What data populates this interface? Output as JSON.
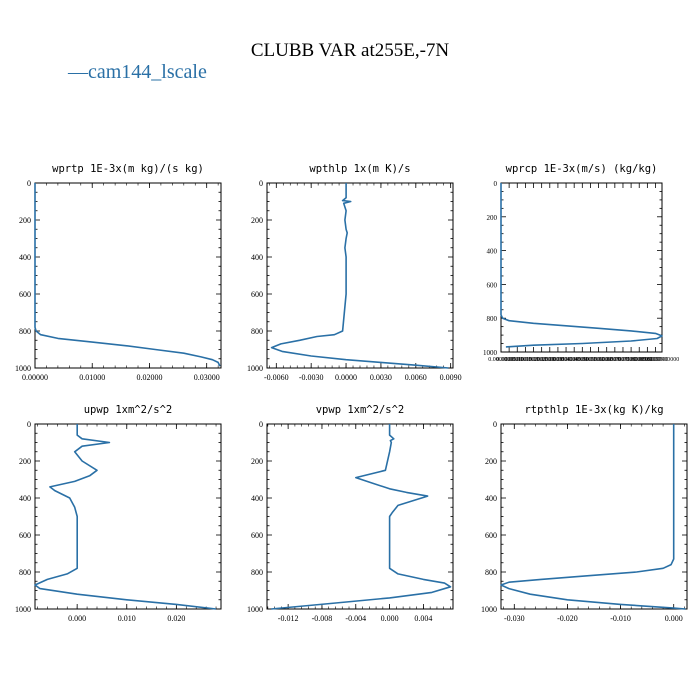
{
  "page": {
    "title": "CLUBB VAR at255E,-7N",
    "legend_label": "cam144_lscale",
    "legend_glyph": "—",
    "line_color": "#2a70a6"
  },
  "chart_data": [
    {
      "type": "line",
      "title": "wprtp  1E-3x(m kg)/(s kg)",
      "xlim": [
        0.0,
        0.0325
      ],
      "ylim": [
        0,
        1000
      ],
      "y_reversed": true,
      "xticks": [
        0.0,
        0.01,
        0.02,
        0.03
      ],
      "xtick_labels": [
        "0.00000",
        "0.01000",
        "0.02000",
        "0.03000"
      ],
      "yticks": [
        0,
        200,
        400,
        600,
        800,
        1000
      ],
      "ytick_labels": [
        "0",
        "200",
        "400",
        "600",
        "800",
        "1000"
      ],
      "series": [
        {
          "x": [
            0,
            0,
            0,
            0,
            0,
            0,
            0,
            0,
            0,
            0.0002,
            0.001,
            0.004,
            0.01,
            0.016,
            0.021,
            0.026,
            0.029,
            0.031,
            0.032,
            0.0323
          ],
          "y": [
            0,
            100,
            200,
            300,
            400,
            500,
            600,
            700,
            780,
            800,
            820,
            840,
            860,
            880,
            900,
            920,
            940,
            955,
            970,
            990
          ]
        }
      ]
    },
    {
      "type": "line",
      "title": "wpthlp  1x(m K)/s",
      "xlim": [
        -0.0068,
        0.0092
      ],
      "ylim": [
        0,
        1000
      ],
      "y_reversed": true,
      "xticks": [
        -0.006,
        -0.003,
        0.0,
        0.003,
        0.006,
        0.009
      ],
      "xtick_labels": [
        "-0.0060",
        "-0.0030",
        "0.0000",
        "0.0030",
        "0.0060",
        "0.0090"
      ],
      "yticks": [
        0,
        200,
        400,
        600,
        800,
        1000
      ],
      "ytick_labels": [
        "0",
        "200",
        "400",
        "600",
        "800",
        "1000"
      ],
      "series": [
        {
          "x": [
            0,
            0,
            -0.0003,
            0.0004,
            -0.0002,
            0,
            -0.0001,
            0,
            0.0001,
            0,
            -0.0001,
            0,
            0,
            0,
            0,
            -0.0003,
            -0.001,
            -0.0025,
            -0.004,
            -0.0056,
            -0.0064,
            -0.0055,
            -0.003,
            0,
            0.003,
            0.006,
            0.0088
          ],
          "y": [
            0,
            80,
            95,
            100,
            110,
            150,
            200,
            250,
            270,
            300,
            350,
            400,
            450,
            500,
            600,
            800,
            820,
            830,
            850,
            870,
            890,
            910,
            935,
            955,
            970,
            985,
            1000
          ]
        }
      ]
    },
    {
      "type": "line",
      "title": "wprcp  1E-3x(m/s) (kg/kg)",
      "xlim": [
        0.0,
        0.00099
      ],
      "ylim": [
        0,
        1000
      ],
      "y_reversed": true,
      "xticks": [
        0.0,
        5e-05,
        0.0001,
        0.00015,
        0.0002,
        0.00025,
        0.0003,
        0.00035,
        0.0004,
        0.00045,
        0.0005,
        0.00055,
        0.0006,
        0.00065,
        0.0007,
        0.00075,
        0.0008,
        0.00085,
        0.0009,
        0.00095,
        0.00099
      ],
      "xtick_labels": [
        "0.0000000",
        "0.0000500",
        "0.0001000",
        "0.0001500",
        "0.0002000",
        "0.0002500",
        "0.0003000",
        "0.0003500",
        "0.0004000",
        "0.0004500",
        "0.0005000",
        "0.0005500",
        "0.0006000",
        "0.0006500",
        "0.0007000",
        "0.0007500",
        "0.0008000",
        "0.0008500",
        "0.0009000",
        "0.0009500",
        "0.0009900000"
      ],
      "yticks": [
        0,
        200,
        400,
        600,
        800,
        1000
      ],
      "ytick_labels": [
        "0",
        "200",
        "400",
        "600",
        "800",
        "1000"
      ],
      "series": [
        {
          "x": [
            0,
            0,
            0,
            1e-05,
            5e-05,
            0.0002,
            0.0004,
            0.0006,
            0.0008,
            0.00095,
            0.00099,
            0.00096,
            0.0008,
            0.0005,
            0.0002,
            3e-05
          ],
          "y": [
            0,
            400,
            780,
            800,
            815,
            830,
            845,
            860,
            875,
            890,
            905,
            920,
            935,
            950,
            960,
            970
          ]
        }
      ]
    },
    {
      "type": "line",
      "title": "upwp  1xm^2/s^2",
      "xlim": [
        -0.0085,
        0.029
      ],
      "ylim": [
        0,
        1000
      ],
      "y_reversed": true,
      "xticks": [
        0.0,
        0.01,
        0.02
      ],
      "xtick_labels": [
        "0.000",
        "0.010",
        "0.020"
      ],
      "yticks": [
        0,
        200,
        400,
        600,
        800,
        1000
      ],
      "ytick_labels": [
        "0",
        "200",
        "400",
        "600",
        "800",
        "1000"
      ],
      "series": [
        {
          "x": [
            0,
            0,
            0.001,
            0.0065,
            0.001,
            -0.0005,
            0.001,
            0.004,
            0.0025,
            -0.0005,
            -0.0055,
            -0.0045,
            -0.0015,
            -0.0005,
            0,
            0,
            0,
            0,
            -0.002,
            -0.006,
            -0.0085,
            -0.0075,
            0,
            0.01,
            0.02,
            0.028
          ],
          "y": [
            0,
            60,
            80,
            100,
            120,
            150,
            200,
            250,
            280,
            310,
            340,
            360,
            400,
            450,
            500,
            600,
            700,
            780,
            810,
            840,
            870,
            890,
            920,
            950,
            975,
            1000
          ]
        }
      ]
    },
    {
      "type": "line",
      "title": "vpwp  1xm^2/s^2",
      "xlim": [
        -0.0145,
        0.0075
      ],
      "ylim": [
        0,
        1000
      ],
      "y_reversed": true,
      "xticks": [
        -0.012,
        -0.008,
        -0.004,
        0.0,
        0.004
      ],
      "xtick_labels": [
        "-0.012",
        "-0.008",
        "-0.004",
        "0.000",
        "0.004"
      ],
      "yticks": [
        0,
        200,
        400,
        600,
        800,
        1000
      ],
      "ytick_labels": [
        "0",
        "200",
        "400",
        "600",
        "800",
        "1000"
      ],
      "series": [
        {
          "x": [
            0,
            0,
            0.0005,
            0.0001,
            0.0002,
            0,
            -0.0005,
            -0.004,
            -0.002,
            0,
            0.002,
            0.0045,
            0.001,
            0.0003,
            0,
            0,
            0,
            0,
            0.001,
            0.004,
            0.0065,
            0.0072,
            0.005,
            0,
            -0.007,
            -0.014
          ],
          "y": [
            0,
            60,
            80,
            90,
            100,
            150,
            250,
            290,
            320,
            350,
            370,
            390,
            440,
            480,
            500,
            600,
            700,
            780,
            810,
            840,
            860,
            880,
            910,
            940,
            970,
            1000
          ]
        }
      ]
    },
    {
      "type": "line",
      "title": "rtpthlp  1E-3x(kg K)/kg",
      "xlim": [
        -0.0325,
        0.0025
      ],
      "ylim": [
        0,
        1000
      ],
      "y_reversed": true,
      "xticks": [
        -0.03,
        -0.02,
        -0.01,
        0.0
      ],
      "xtick_labels": [
        "-0.030",
        "-0.020",
        "-0.010",
        "0.000"
      ],
      "yticks": [
        0,
        200,
        400,
        600,
        800,
        1000
      ],
      "ytick_labels": [
        "0",
        "200",
        "400",
        "600",
        "800",
        "1000"
      ],
      "series": [
        {
          "x": [
            0,
            0,
            0,
            0,
            0,
            0,
            -0.0005,
            -0.002,
            -0.007,
            -0.016,
            -0.025,
            -0.031,
            -0.0325,
            -0.031,
            -0.027,
            -0.02,
            -0.01,
            0,
            0.0022
          ],
          "y": [
            0,
            200,
            400,
            600,
            700,
            730,
            760,
            780,
            800,
            820,
            840,
            855,
            870,
            890,
            920,
            950,
            975,
            995,
            1000
          ]
        }
      ]
    }
  ]
}
